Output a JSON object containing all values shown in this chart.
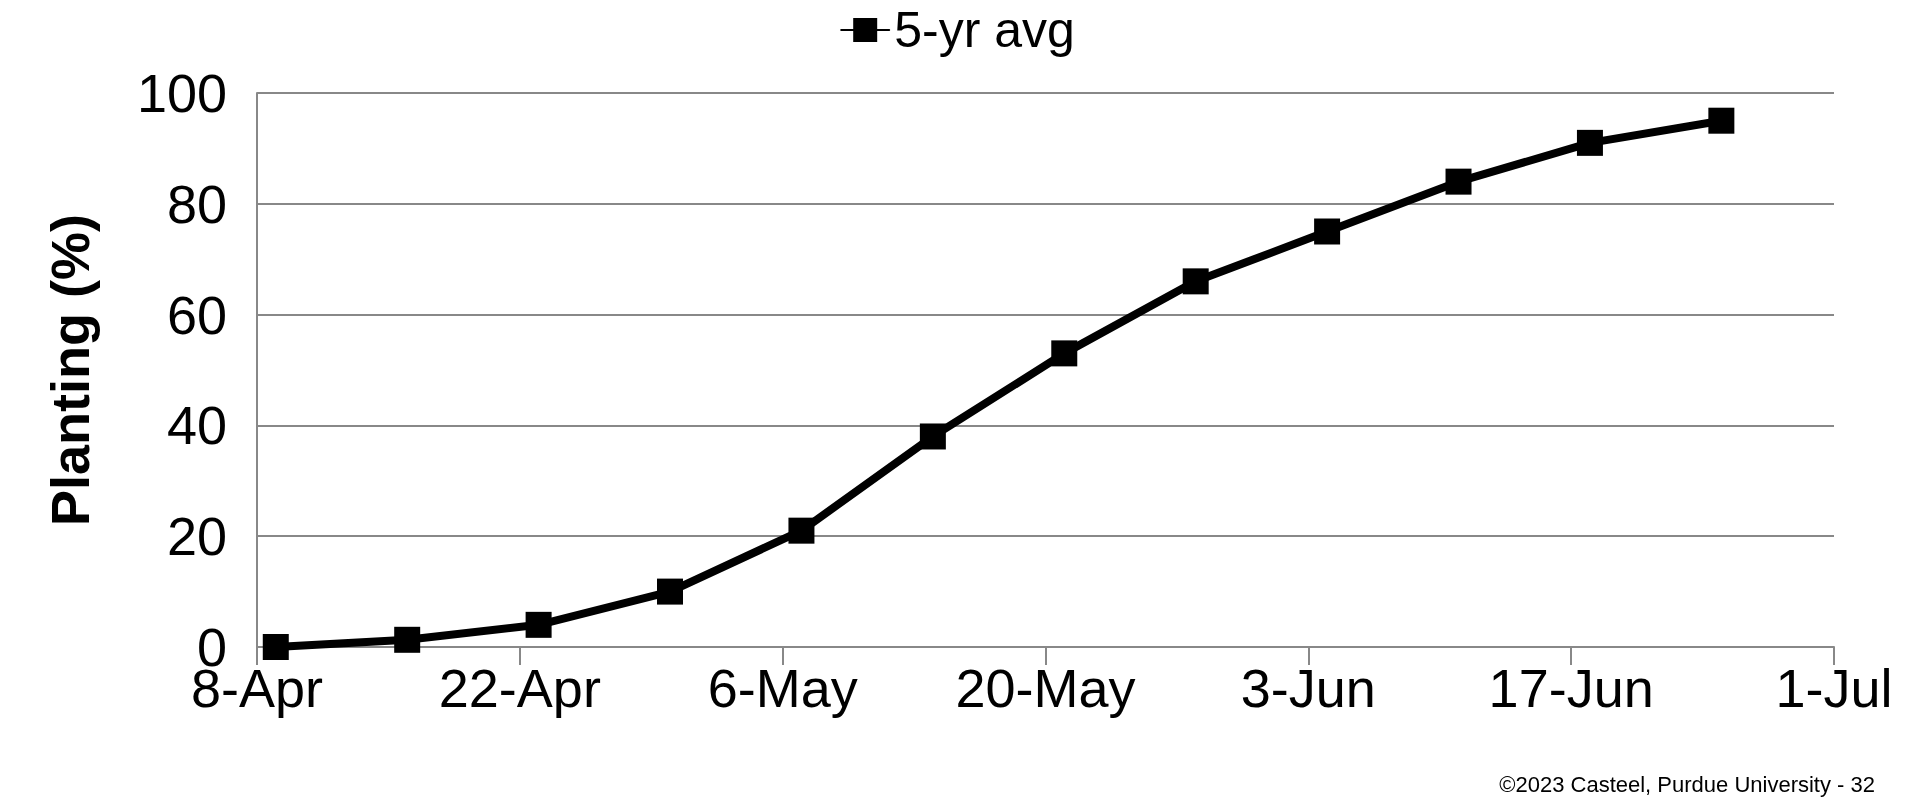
{
  "chart_data": {
    "type": "line",
    "ylabel": "Planting (%)",
    "x": [
      "--04-09",
      "--04-16",
      "--04-23",
      "--04-30",
      "--05-07",
      "--05-14",
      "--05-21",
      "--05-28",
      "--06-04",
      "--06-11",
      "--06-18",
      "--06-25"
    ],
    "series": [
      {
        "name": "5-yr avg",
        "color": "#000000",
        "values": [
          0,
          1.3,
          4,
          10,
          21,
          38,
          53,
          66,
          75,
          84,
          91,
          95
        ]
      }
    ],
    "xlim": [
      "--04-08",
      "--07-01"
    ],
    "xticks": [
      {
        "value": "--04-08",
        "label": "8-Apr"
      },
      {
        "value": "--04-22",
        "label": "22-Apr"
      },
      {
        "value": "--05-06",
        "label": "6-May"
      },
      {
        "value": "--05-20",
        "label": "20-May"
      },
      {
        "value": "--06-03",
        "label": "3-Jun"
      },
      {
        "value": "--06-17",
        "label": "17-Jun"
      },
      {
        "value": "--07-01",
        "label": "1-Jul"
      }
    ],
    "ylim": [
      0,
      100
    ],
    "yticks": [
      0,
      20,
      40,
      60,
      80,
      100
    ],
    "grid": "y",
    "legend": "top",
    "marker": "square",
    "line_style": "solid",
    "annotations": [
      "©2023 Casteel, Purdue University - 32"
    ]
  }
}
